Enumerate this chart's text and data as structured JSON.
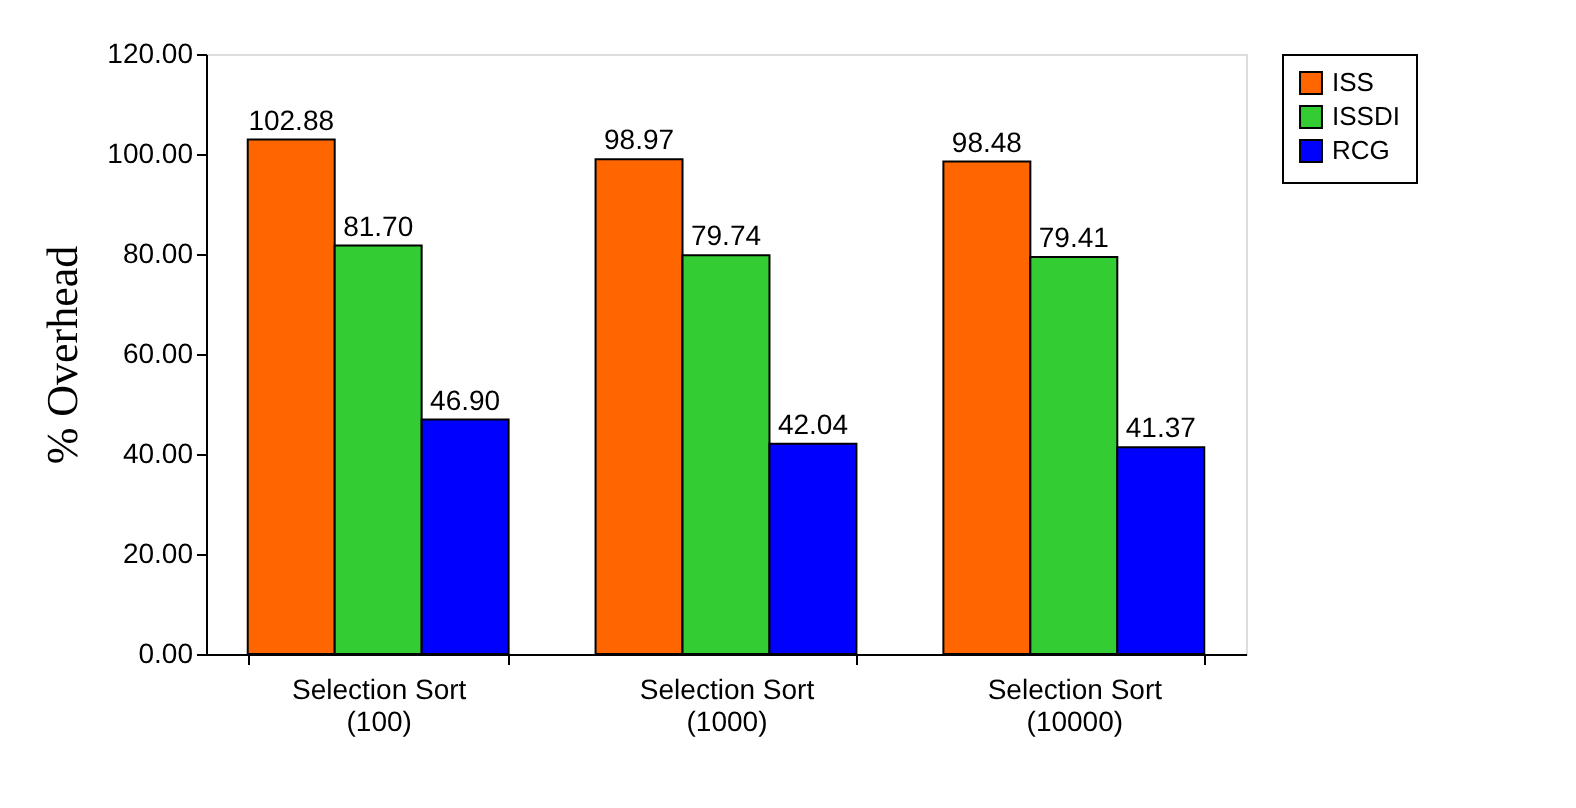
{
  "chart_data": {
    "type": "bar",
    "ylabel": "% Overhead",
    "categories": [
      "Selection Sort\n(100)",
      "Selection Sort\n(1000)",
      "Selection Sort\n(10000)"
    ],
    "series": [
      {
        "name": "ISS",
        "color": "#ff6600",
        "values": [
          102.88,
          98.97,
          98.48
        ],
        "value_labels": [
          "102.88",
          "98.97",
          "98.48"
        ]
      },
      {
        "name": "ISSDI",
        "color": "#33cc33",
        "values": [
          81.7,
          79.74,
          79.41
        ],
        "value_labels": [
          "81.70",
          "79.74",
          "79.41"
        ]
      },
      {
        "name": "RCG",
        "color": "#0000ff",
        "values": [
          46.9,
          42.04,
          41.37
        ],
        "value_labels": [
          "46.90",
          "42.04",
          "41.37"
        ]
      }
    ],
    "ylim": [
      0,
      120
    ],
    "yticks": [
      {
        "value": 0,
        "label": "0.00"
      },
      {
        "value": 20,
        "label": "20.00"
      },
      {
        "value": 40,
        "label": "40.00"
      },
      {
        "value": 60,
        "label": "60.00"
      },
      {
        "value": 80,
        "label": "80.00"
      },
      {
        "value": 100,
        "label": "100.00"
      },
      {
        "value": 120,
        "label": "120.00"
      }
    ],
    "grid": false,
    "legend": "right"
  }
}
